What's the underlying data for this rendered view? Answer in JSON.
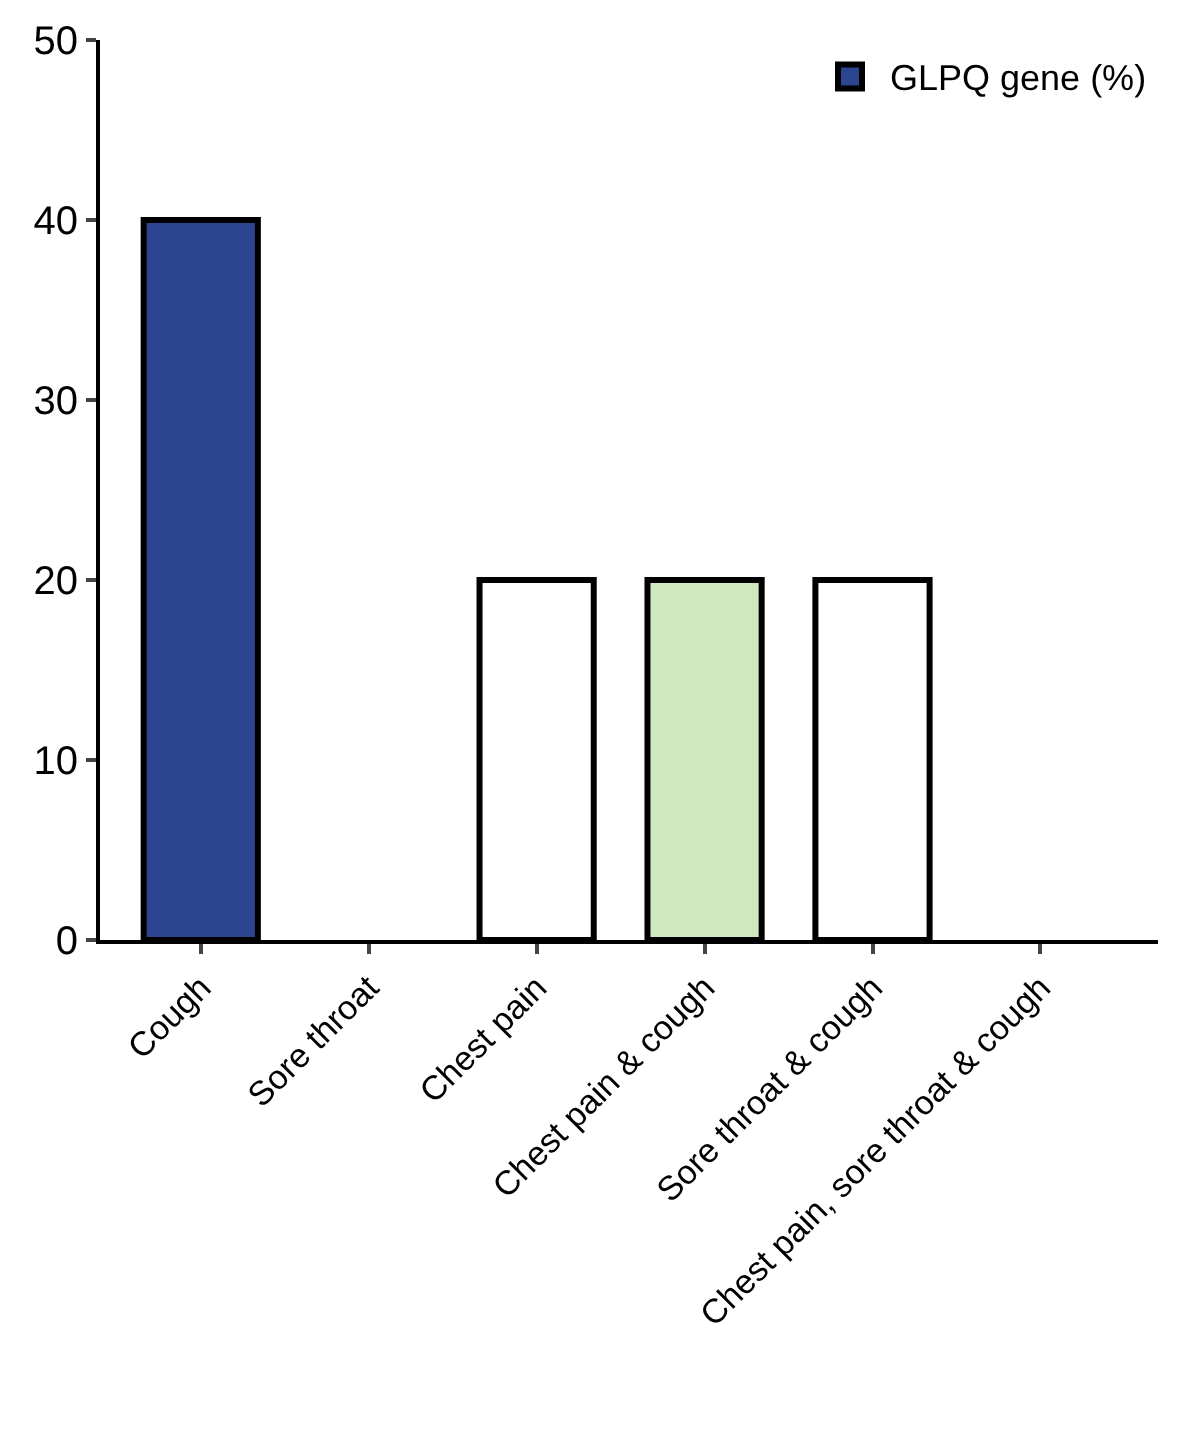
{
  "chart_data": {
    "type": "bar",
    "categories": [
      "Cough",
      "Sore throat",
      "Chest pain",
      "Chest pain & cough",
      "Sore throat & cough",
      "Chest pain, sore throat & cough"
    ],
    "series": [
      {
        "name": "GLPQ gene (%)",
        "color": "#000000",
        "colors": [
          "#2b4591",
          "#ffffff",
          "#ffffff",
          "#cfe8c0",
          "#ffffff",
          "#ffffff"
        ],
        "values": [
          40,
          0,
          20,
          20,
          20,
          0
        ]
      }
    ],
    "ylim": [
      0,
      50
    ],
    "yticks": [
      0,
      10,
      20,
      30,
      40,
      50
    ],
    "legend": "top right"
  }
}
